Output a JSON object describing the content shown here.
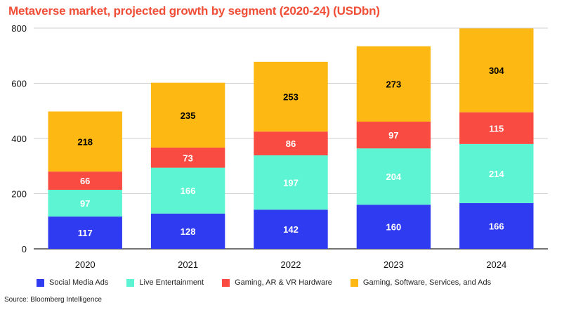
{
  "header": {
    "title": "Metaverse market, projected growth by segment (2020-24) (USDbn)"
  },
  "footer": {
    "source": "Source: Bloomberg Intelligence"
  },
  "colors": {
    "title": "#f04e37",
    "social_media_ads": "#2f3bf0",
    "live_entertainment": "#5cf4d2",
    "gaming_hardware": "#fa4b42",
    "gaming_software": "#fdb813"
  },
  "chart_data": {
    "type": "bar",
    "stacked": true,
    "title": "Metaverse market, projected growth by segment (2020-24) (USDbn)",
    "xlabel": "",
    "ylabel": "",
    "categories": [
      "2020",
      "2021",
      "2022",
      "2023",
      "2024"
    ],
    "ylim": [
      0,
      800
    ],
    "yticks": [
      0,
      200,
      400,
      600,
      800
    ],
    "grid": true,
    "legend_position": "bottom",
    "series": [
      {
        "name": "Social Media Ads",
        "color": "#2f3bf0",
        "label_color": "#ffffff",
        "values": [
          117,
          128,
          142,
          160,
          166
        ]
      },
      {
        "name": "Live Entertainment",
        "color": "#5cf4d2",
        "label_color": "#ffffff",
        "values": [
          97,
          166,
          197,
          204,
          214
        ]
      },
      {
        "name": "Gaming, AR & VR Hardware",
        "color": "#fa4b42",
        "label_color": "#ffffff",
        "values": [
          66,
          73,
          86,
          97,
          115
        ]
      },
      {
        "name": "Gaming, Software, Services, and Ads",
        "color": "#fdb813",
        "label_color": "#000000",
        "values": [
          218,
          235,
          253,
          273,
          304
        ]
      }
    ]
  }
}
